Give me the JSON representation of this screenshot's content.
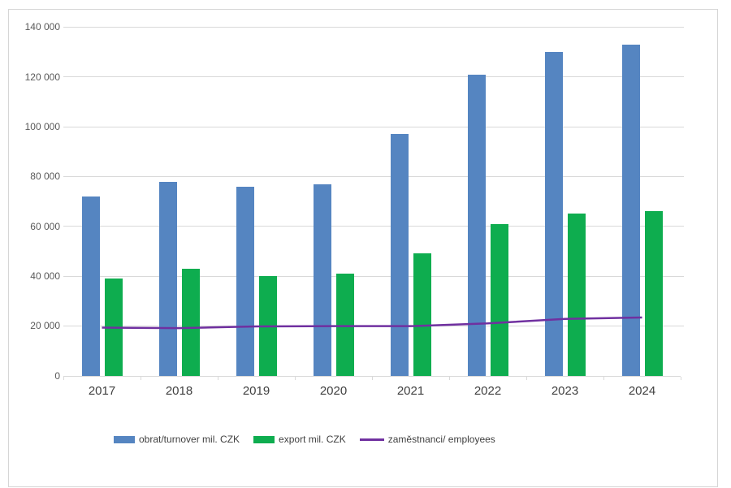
{
  "chart_data": {
    "type": "bar",
    "title": "",
    "xlabel": "",
    "ylabel": "",
    "categories": [
      "2017",
      "2018",
      "2019",
      "2020",
      "2021",
      "2022",
      "2023",
      "2024"
    ],
    "series": [
      {
        "name": "obrat/turnover mil. CZK",
        "type": "bar",
        "color": "#5585c1",
        "values": [
          72000,
          78000,
          76000,
          77000,
          97000,
          121000,
          130000,
          133000
        ]
      },
      {
        "name": "export mil. CZK",
        "type": "bar",
        "color": "#0ead4f",
        "values": [
          39000,
          43000,
          40000,
          41000,
          49000,
          61000,
          65000,
          66000
        ]
      },
      {
        "name": "zaměstnanci/ employees",
        "type": "line",
        "color": "#7030a0",
        "values": [
          19300,
          19100,
          19800,
          19900,
          19900,
          21000,
          22800,
          23400
        ]
      }
    ],
    "ylim": [
      0,
      140000
    ],
    "ytick_step": 20000,
    "ytick_labels": [
      "0",
      "20 000",
      "40 000",
      "60 000",
      "80 000",
      "100 000",
      "120 000",
      "140 000"
    ],
    "grid": true,
    "legend_position": "bottom"
  },
  "colors": {
    "gridline": "#d9d9d9",
    "axis_text": "#595959",
    "category_text": "#404040",
    "frame_border": "#d6d6d6"
  }
}
